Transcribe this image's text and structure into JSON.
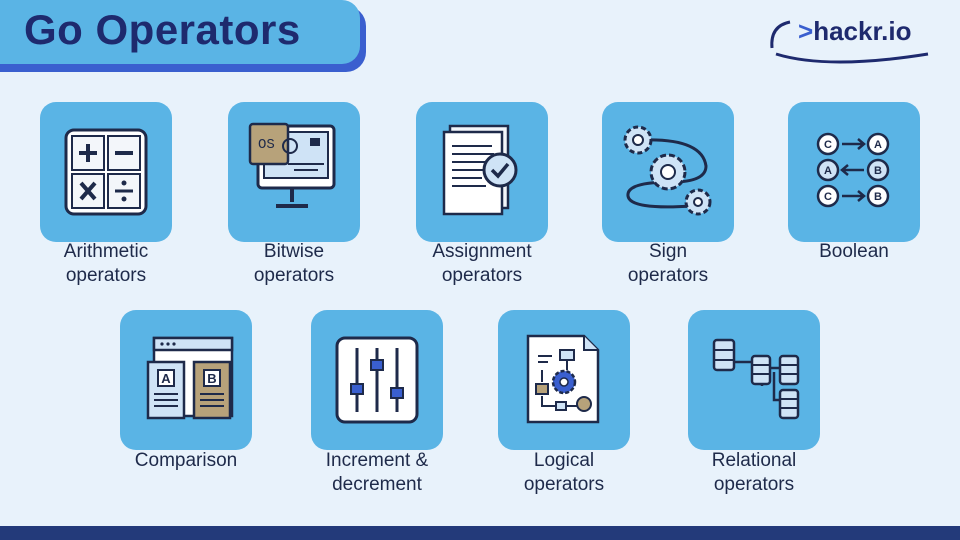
{
  "title": "Go Operators",
  "logo": {
    "prefix": ">",
    "name": "hackr.io"
  },
  "icons": {
    "arithmetic": "calculator-icon",
    "bitwise": "monitor-icon",
    "assignment": "document-check-icon",
    "sign": "gears-icon",
    "boolean": "nodes-icon",
    "comparison": "compare-windows-icon",
    "increment": "sliders-icon",
    "logical": "flowchart-icon",
    "relational": "database-tree-icon"
  },
  "cards": [
    {
      "line1": "Arithmetic",
      "line2": "operators"
    },
    {
      "line1": "Bitwise",
      "line2": "operators"
    },
    {
      "line1": "Assignment",
      "line2": "operators"
    },
    {
      "line1": "Sign",
      "line2": "operators"
    },
    {
      "line1": "Boolean",
      "line2": ""
    },
    {
      "line1": "Comparison",
      "line2": ""
    },
    {
      "line1": "Increment &",
      "line2": "decrement"
    },
    {
      "line1": "Logical",
      "line2": "operators"
    },
    {
      "line1": "Relational",
      "line2": "operators"
    }
  ],
  "icon_text": {
    "os": "OS",
    "a": "A",
    "b": "B",
    "c": "C"
  },
  "colors": {
    "background": "#e8f2fb",
    "card": "#5ab4e5",
    "title_box": "#5ab4e5",
    "title_text": "#1e2a6e",
    "accent": "#3a5fcf",
    "bottom_bar": "#233a7a"
  }
}
